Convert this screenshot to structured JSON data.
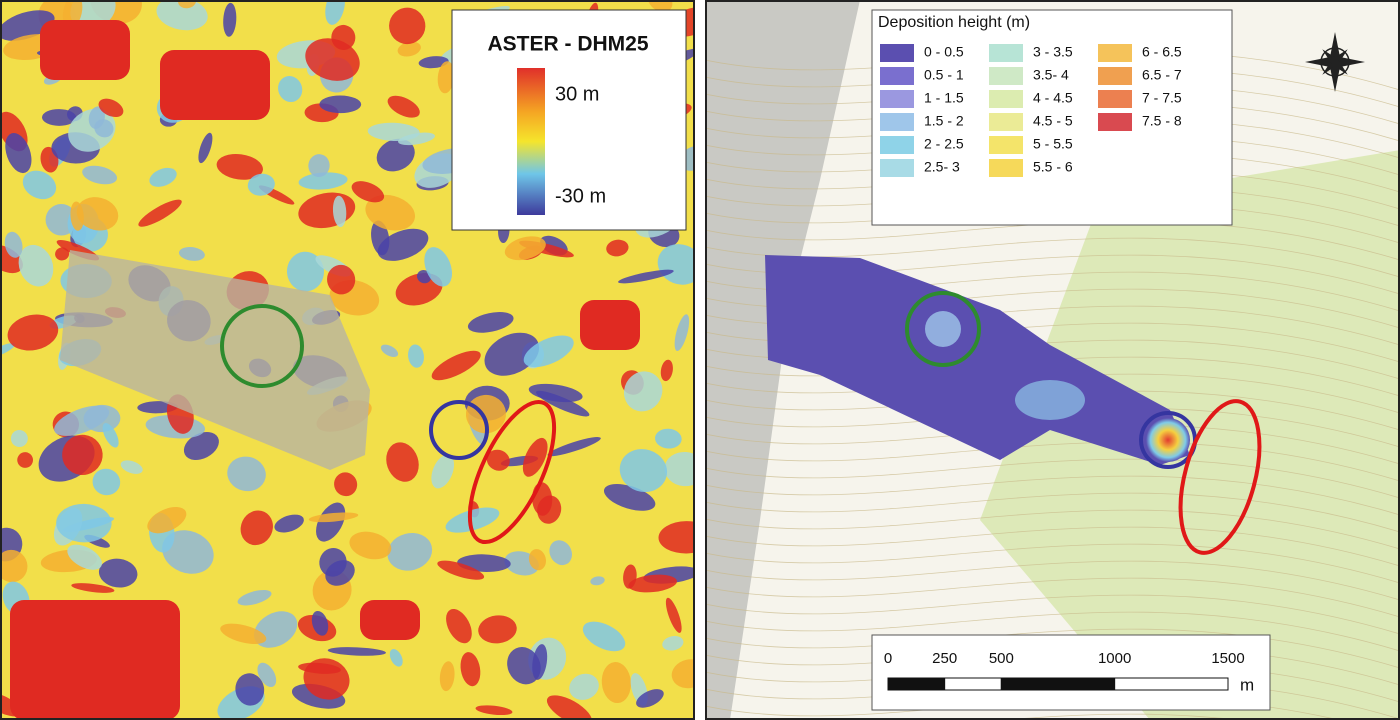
{
  "left_panel": {
    "legend": {
      "title": "ASTER - DHM25",
      "max_label": "30 m",
      "min_label": "-30 m"
    }
  },
  "right_panel": {
    "legend": {
      "title": "Deposition height (m)",
      "classes": [
        {
          "label": "0 - 0.5",
          "color": "#5b4fb0"
        },
        {
          "label": "0.5 - 1",
          "color": "#7a6fcf"
        },
        {
          "label": "1 - 1.5",
          "color": "#9b98e0"
        },
        {
          "label": "1.5 - 2",
          "color": "#9fc6ea"
        },
        {
          "label": "2 - 2.5",
          "color": "#8fd3e8"
        },
        {
          "label": "2.5- 3",
          "color": "#a8dbe6"
        },
        {
          "label": "3 - 3.5",
          "color": "#b7e4d6"
        },
        {
          "label": "3.5- 4",
          "color": "#cfe9c6"
        },
        {
          "label": "4 - 4.5",
          "color": "#dcecb0"
        },
        {
          "label": "4.5 - 5",
          "color": "#ebeb96"
        },
        {
          "label": "5 - 5.5",
          "color": "#f4e46a"
        },
        {
          "label": "5.5 - 6",
          "color": "#f6d95a"
        },
        {
          "label": "6 - 6.5",
          "color": "#f5c35a"
        },
        {
          "label": "6.5 - 7",
          "color": "#f0a050"
        },
        {
          "label": "7 - 7.5",
          "color": "#ec8050"
        },
        {
          "label": "7.5 - 8",
          "color": "#d94a50"
        }
      ]
    },
    "scale_bar": {
      "ticks": [
        0,
        250,
        500,
        1000,
        1500
      ],
      "unit": "m"
    }
  }
}
